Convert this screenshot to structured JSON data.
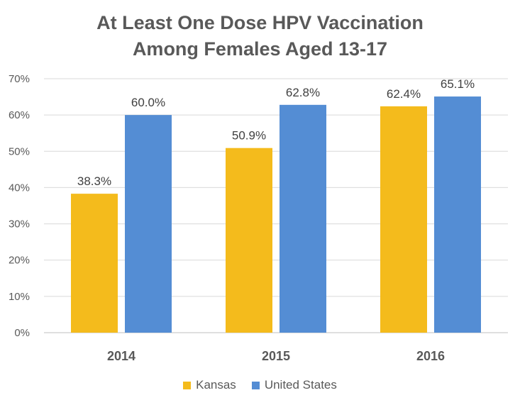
{
  "chart_data": {
    "type": "bar",
    "title_lines": [
      "At Least One Dose HPV Vaccination",
      "Among Females Aged 13-17"
    ],
    "categories": [
      "2014",
      "2015",
      "2016"
    ],
    "series": [
      {
        "name": "Kansas",
        "values": [
          38.3,
          50.9,
          62.4
        ],
        "labels": [
          "38.3%",
          "50.9%",
          "62.4%"
        ],
        "color": "#F4BB1C"
      },
      {
        "name": "United States",
        "values": [
          60.0,
          62.8,
          65.1
        ],
        "labels": [
          "60.0%",
          "62.8%",
          "65.1%"
        ],
        "color": "#548DD4"
      }
    ],
    "ylim": [
      0,
      70
    ],
    "yticks": [
      0,
      10,
      20,
      30,
      40,
      50,
      60,
      70
    ],
    "ytick_labels": [
      "0%",
      "10%",
      "20%",
      "30%",
      "40%",
      "50%",
      "60%",
      "70%"
    ],
    "grid": true,
    "legend_position": "bottom"
  }
}
